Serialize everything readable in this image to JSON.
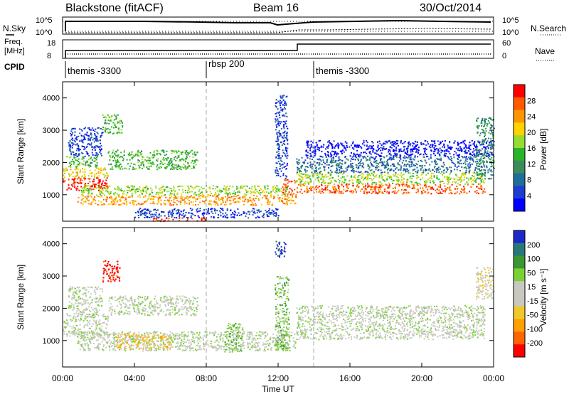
{
  "header": {
    "title": "Blackstone (fitACF)",
    "beam": "Beam 16",
    "date": "30/Oct/2014"
  },
  "panel_labels": {
    "nsky": "N.Sky",
    "nsearch": "N.Search",
    "freq_line1": "Freq.",
    "freq_line2": "[MHz]",
    "nave": "Nave",
    "cpid": "CPID"
  },
  "top_axis_ticks": {
    "nsky_left": [
      "10^5",
      "10^0"
    ],
    "nsearch_right": [
      "10^5",
      "10^0"
    ],
    "freq_left": [
      "18",
      "8"
    ],
    "nave_right": [
      "60",
      "0"
    ]
  },
  "cpid_segments": [
    {
      "label": "themis -3300"
    },
    {
      "label": "rbsp 200"
    },
    {
      "label": "themis -3300"
    }
  ],
  "colorbars": {
    "power": {
      "label": "Power [dB]",
      "ticks": [
        "28",
        "24",
        "20",
        "16",
        "12",
        "8",
        "4"
      ],
      "colors": [
        "#ff0000",
        "#ff5a00",
        "#ff9600",
        "#ffd200",
        "#96dc32",
        "#28b428",
        "#3c8c5a",
        "#1e6e9b",
        "#1e3cd2",
        "#0000ff"
      ]
    },
    "velocity": {
      "label": "Velocity [m s⁻¹]",
      "ticks": [
        "200",
        "100",
        "50",
        "15",
        "-15",
        "-50",
        "-100",
        "-200"
      ],
      "colors": [
        "#1e28c8",
        "#287878",
        "#3c9632",
        "#78d232",
        "#c8c8c0",
        "#c8c8c0",
        "#f0c828",
        "#ffa000",
        "#ff6400",
        "#ff0000"
      ]
    }
  },
  "chart_data": [
    {
      "type": "heatmap",
      "title": "Power",
      "ylabel": "Slant Range [km]",
      "xlabel": "Time UT",
      "x_ticks": [
        "00:00",
        "04:00",
        "08:00",
        "12:00",
        "16:00",
        "20:00",
        "00:00"
      ],
      "xlim_hours": [
        0,
        24
      ],
      "y_ticks": [
        1000,
        2000,
        3000,
        4000
      ],
      "ylim": [
        180,
        4500
      ],
      "colorbar": "power",
      "dashed_lines_hours": [
        8,
        14
      ],
      "regions": [
        {
          "t0": 0.0,
          "t1": 2.5,
          "r0": 1150,
          "r1": 1550,
          "level": 0
        },
        {
          "t0": 0.0,
          "t1": 2.5,
          "r0": 1550,
          "r1": 1850,
          "level": 3
        },
        {
          "t0": 0.2,
          "t1": 2.0,
          "r0": 1850,
          "r1": 2200,
          "level": 5
        },
        {
          "t0": 0.3,
          "t1": 2.2,
          "r0": 2200,
          "r1": 3100,
          "level": 8
        },
        {
          "t0": 2.2,
          "t1": 3.3,
          "r0": 2900,
          "r1": 3500,
          "level": 5
        },
        {
          "t0": 2.5,
          "t1": 7.5,
          "r0": 1800,
          "r1": 2400,
          "level": 5
        },
        {
          "t0": 0.8,
          "t1": 13.0,
          "r0": 700,
          "r1": 1000,
          "level": 2
        },
        {
          "t0": 1.0,
          "t1": 12.5,
          "r0": 1000,
          "r1": 1300,
          "level": 4
        },
        {
          "t0": 4.0,
          "t1": 12.0,
          "r0": 300,
          "r1": 600,
          "level": 8
        },
        {
          "t0": 5.0,
          "t1": 8.0,
          "r0": 200,
          "r1": 300,
          "level": 0
        },
        {
          "t0": 11.8,
          "t1": 12.5,
          "r0": 1500,
          "r1": 4100,
          "level": 8
        },
        {
          "t0": 12.2,
          "t1": 13.0,
          "r0": 1000,
          "r1": 1500,
          "level": 1
        },
        {
          "t0": 13.0,
          "t1": 23.5,
          "r0": 1050,
          "r1": 1350,
          "level": 1
        },
        {
          "t0": 13.0,
          "t1": 23.5,
          "r0": 1350,
          "r1": 1700,
          "level": 4
        },
        {
          "t0": 13.0,
          "t1": 23.5,
          "r0": 1700,
          "r1": 2200,
          "level": 7
        },
        {
          "t0": 13.5,
          "t1": 24.0,
          "r0": 2200,
          "r1": 2700,
          "level": 9
        },
        {
          "t0": 23.0,
          "t1": 24.0,
          "r0": 1500,
          "r1": 3400,
          "level": 6
        }
      ]
    },
    {
      "type": "heatmap",
      "title": "Velocity",
      "ylabel": "Slant Range [km]",
      "xlabel": "Time UT",
      "x_ticks": [
        "00:00",
        "04:00",
        "08:00",
        "12:00",
        "16:00",
        "20:00",
        "00:00"
      ],
      "xlim_hours": [
        0,
        24
      ],
      "y_ticks": [
        1000,
        2000,
        3000,
        4000
      ],
      "ylim": [
        180,
        4500
      ],
      "colorbar": "velocity",
      "dashed_lines_hours": [
        8,
        14
      ],
      "regions": [
        {
          "t0": 0.0,
          "t1": 2.5,
          "r0": 1150,
          "r1": 1850,
          "level": 4
        },
        {
          "t0": 0.3,
          "t1": 2.2,
          "r0": 1850,
          "r1": 2700,
          "level": 4
        },
        {
          "t0": 2.2,
          "t1": 3.2,
          "r0": 2800,
          "r1": 3500,
          "level": 9
        },
        {
          "t0": 2.5,
          "t1": 7.5,
          "r0": 1800,
          "r1": 2400,
          "level": 4
        },
        {
          "t0": 0.8,
          "t1": 13.0,
          "r0": 700,
          "r1": 1300,
          "level": 4
        },
        {
          "t0": 3.0,
          "t1": 6.0,
          "r0": 750,
          "r1": 1250,
          "level": 6
        },
        {
          "t0": 9.0,
          "t1": 10.0,
          "r0": 650,
          "r1": 1550,
          "level": 3
        },
        {
          "t0": 11.8,
          "t1": 12.6,
          "r0": 700,
          "r1": 3000,
          "level": 3
        },
        {
          "t0": 11.8,
          "t1": 12.4,
          "r0": 3600,
          "r1": 4100,
          "level": 0
        },
        {
          "t0": 13.0,
          "t1": 23.5,
          "r0": 1050,
          "r1": 2100,
          "level": 4
        },
        {
          "t0": 23.0,
          "t1": 24.0,
          "r0": 2300,
          "r1": 3300,
          "level": 5
        }
      ]
    }
  ]
}
